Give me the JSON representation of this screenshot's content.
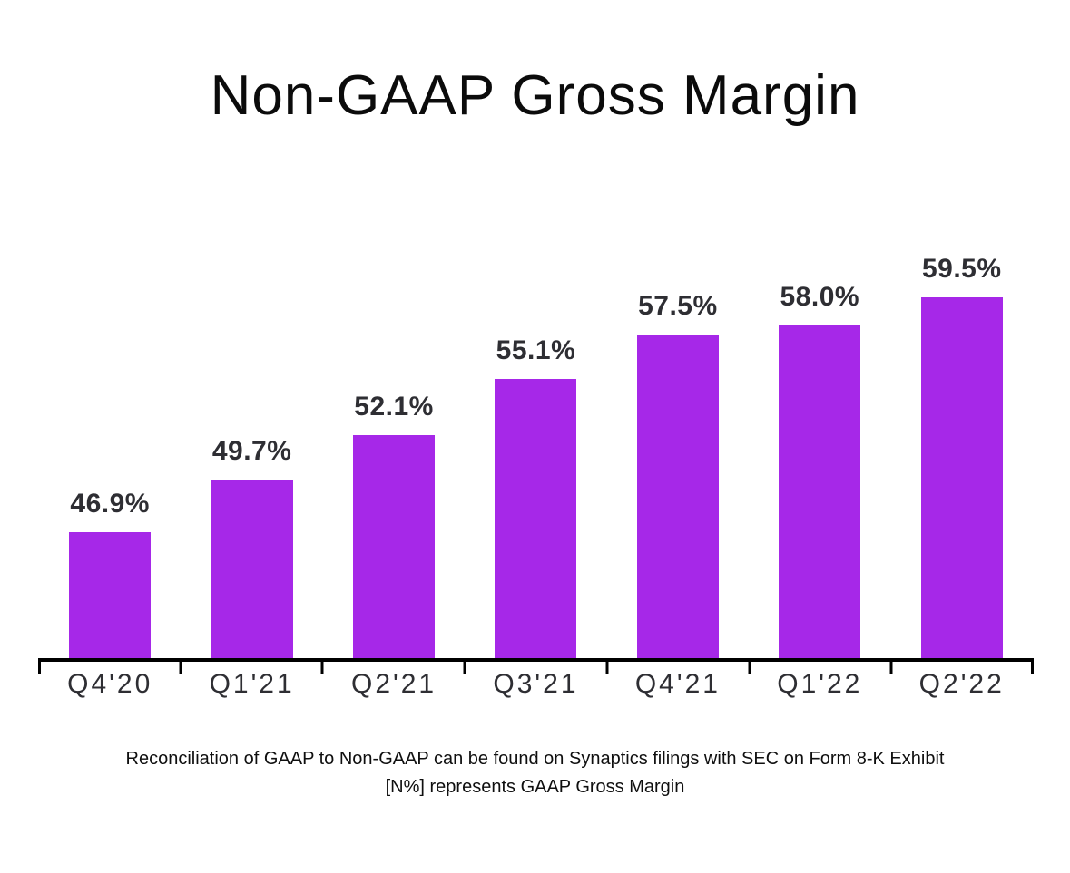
{
  "title": "Non-GAAP Gross Margin",
  "footnote": {
    "line1": "Reconciliation of GAAP to Non-GAAP can be found on Synaptics filings with SEC on Form 8-K Exhibit",
    "line2": "[N%] represents GAAP Gross Margin"
  },
  "chart_data": {
    "type": "bar",
    "title": "Non-GAAP Gross Margin",
    "categories": [
      "Q4'20",
      "Q1'21",
      "Q2'21",
      "Q3'21",
      "Q4'21",
      "Q1'22",
      "Q2'22"
    ],
    "values": [
      46.9,
      49.7,
      52.1,
      55.1,
      57.5,
      58.0,
      59.5
    ],
    "data_labels": [
      "46.9%",
      "49.7%",
      "52.1%",
      "55.1%",
      "57.5%",
      "58.0%",
      "59.5%"
    ],
    "ylim": [
      40,
      60
    ],
    "xlabel": "",
    "ylabel": "",
    "grid": false,
    "legend_position": "none",
    "bar_color": "#a628e8",
    "value_label_color": "#2e2e33",
    "axis_color": "#000000",
    "tick_count": 8
  }
}
